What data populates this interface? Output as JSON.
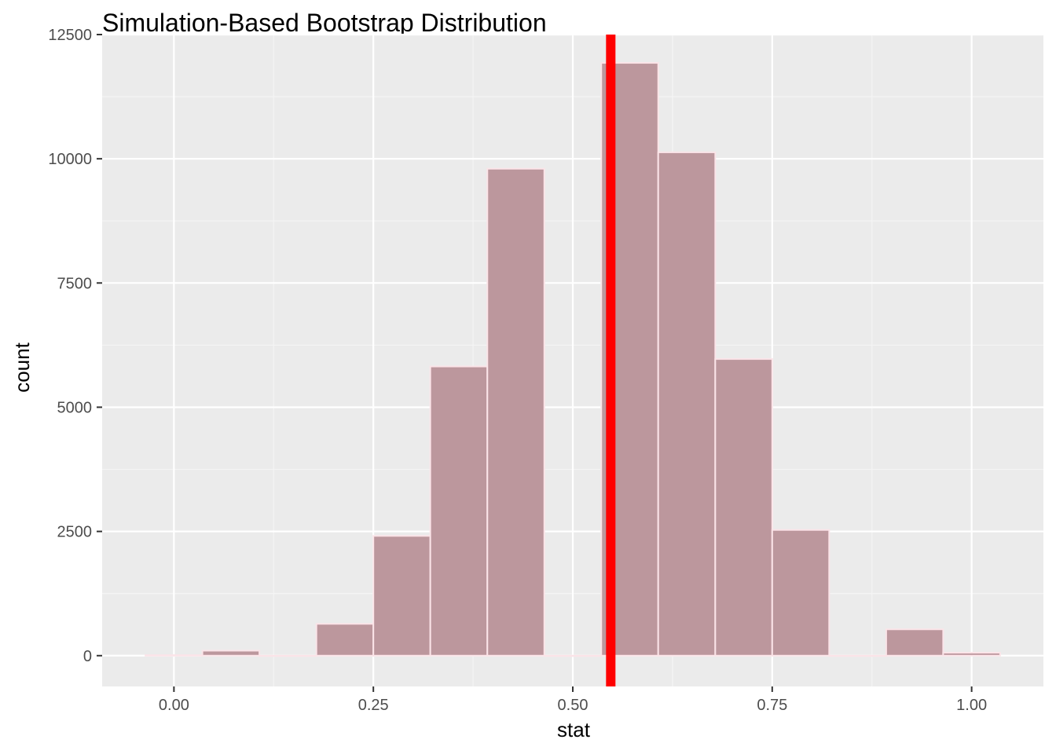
{
  "chart_data": {
    "type": "bar",
    "title": "Simulation-Based Bootstrap Distribution",
    "xlabel": "stat",
    "ylabel": "count",
    "xlim": [
      -0.09,
      1.09
    ],
    "ylim": [
      -620,
      12500
    ],
    "x_ticks": [
      "0.00",
      "0.25",
      "0.50",
      "0.75",
      "1.00"
    ],
    "x_tick_values": [
      0.0,
      0.25,
      0.5,
      0.75,
      1.0
    ],
    "y_ticks": [
      "0",
      "2500",
      "5000",
      "7500",
      "10000",
      "12500"
    ],
    "y_tick_values": [
      0,
      2500,
      5000,
      7500,
      10000,
      12500
    ],
    "bin_width": 0.0714,
    "bins": [
      {
        "x_start": -0.0357,
        "x_end": 0.0357,
        "count": 10
      },
      {
        "x_start": 0.0357,
        "x_end": 0.1071,
        "count": 100
      },
      {
        "x_start": 0.1071,
        "x_end": 0.1786,
        "count": 0
      },
      {
        "x_start": 0.1786,
        "x_end": 0.25,
        "count": 640
      },
      {
        "x_start": 0.25,
        "x_end": 0.3214,
        "count": 2410
      },
      {
        "x_start": 0.3214,
        "x_end": 0.3929,
        "count": 5820
      },
      {
        "x_start": 0.3929,
        "x_end": 0.4643,
        "count": 9800
      },
      {
        "x_start": 0.4643,
        "x_end": 0.5357,
        "count": 0
      },
      {
        "x_start": 0.5357,
        "x_end": 0.6071,
        "count": 11930
      },
      {
        "x_start": 0.6071,
        "x_end": 0.6786,
        "count": 10130
      },
      {
        "x_start": 0.6786,
        "x_end": 0.75,
        "count": 5970
      },
      {
        "x_start": 0.75,
        "x_end": 0.8214,
        "count": 2530
      },
      {
        "x_start": 0.8214,
        "x_end": 0.8929,
        "count": 0
      },
      {
        "x_start": 0.8929,
        "x_end": 0.9643,
        "count": 530
      },
      {
        "x_start": 0.9643,
        "x_end": 1.0357,
        "count": 60
      }
    ],
    "reference_line": {
      "x": 0.5476,
      "color": "#ff0000"
    },
    "grid": true,
    "legend": "none",
    "colors": {
      "panel_background": "#ebebeb",
      "grid_major": "#ffffff",
      "grid_minor": "#f5f5f5",
      "bar_fill": "#bc979d",
      "bar_outline": "#fbe4e8",
      "reference_line": "#ff0000",
      "tick_text": "#4d4d4d",
      "tick_mark": "#333333"
    }
  }
}
